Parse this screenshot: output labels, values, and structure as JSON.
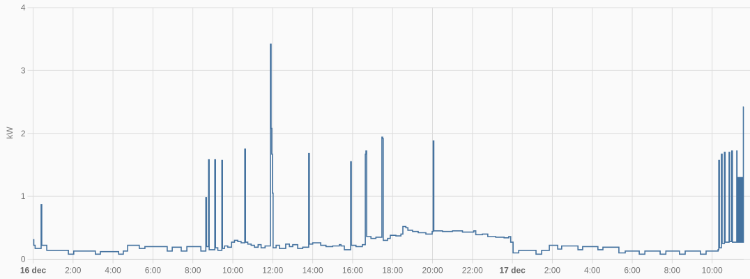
{
  "chart_data": {
    "type": "line",
    "step": true,
    "title": "",
    "xlabel": "",
    "ylabel": "kW",
    "ylim": [
      0,
      4
    ],
    "yticks": [
      "0",
      "1",
      "2",
      "3",
      "4"
    ],
    "xlim": [
      "16 dec 00:00",
      "17 dec 11:35"
    ],
    "xticks": [
      {
        "t": "16 dec 00:00",
        "label": "16 dec",
        "bold": true
      },
      {
        "t": "16 dec 02:00",
        "label": "2:00"
      },
      {
        "t": "16 dec 04:00",
        "label": "4:00"
      },
      {
        "t": "16 dec 06:00",
        "label": "6:00"
      },
      {
        "t": "16 dec 08:00",
        "label": "8:00"
      },
      {
        "t": "16 dec 10:00",
        "label": "10:00"
      },
      {
        "t": "16 dec 12:00",
        "label": "12:00"
      },
      {
        "t": "16 dec 14:00",
        "label": "14:00"
      },
      {
        "t": "16 dec 16:00",
        "label": "16:00"
      },
      {
        "t": "16 dec 18:00",
        "label": "18:00"
      },
      {
        "t": "16 dec 20:00",
        "label": "20:00"
      },
      {
        "t": "16 dec 22:00",
        "label": "22:00"
      },
      {
        "t": "17 dec 00:00",
        "label": "17 dec",
        "bold": true
      },
      {
        "t": "17 dec 02:00",
        "label": "2:00"
      },
      {
        "t": "17 dec 04:00",
        "label": "4:00"
      },
      {
        "t": "17 dec 06:00",
        "label": "6:00"
      },
      {
        "t": "17 dec 08:00",
        "label": "8:00"
      },
      {
        "t": "17 dec 10:00",
        "label": "10:00"
      }
    ],
    "grid": true,
    "legend": "none",
    "colors": {
      "line": "#44729f",
      "grid": "#dcdcdc",
      "text": "#757575"
    },
    "series": [
      {
        "points": [
          [
            "16 dec 00:00",
            0.31
          ],
          [
            "16 dec 00:02",
            0.22
          ],
          [
            "16 dec 00:06",
            0.17
          ],
          [
            "16 dec 00:24",
            0.87
          ],
          [
            "16 dec 00:26",
            0.22
          ],
          [
            "16 dec 00:41",
            0.14
          ],
          [
            "16 dec 01:46",
            0.08
          ],
          [
            "16 dec 02:02",
            0.13
          ],
          [
            "16 dec 03:07",
            0.08
          ],
          [
            "16 dec 03:22",
            0.12
          ],
          [
            "16 dec 04:17",
            0.08
          ],
          [
            "16 dec 04:31",
            0.13
          ],
          [
            "16 dec 04:44",
            0.22
          ],
          [
            "16 dec 05:19",
            0.17
          ],
          [
            "16 dec 05:36",
            0.2
          ],
          [
            "16 dec 06:43",
            0.13
          ],
          [
            "16 dec 06:58",
            0.19
          ],
          [
            "16 dec 07:25",
            0.13
          ],
          [
            "16 dec 07:42",
            0.2
          ],
          [
            "16 dec 08:24",
            0.13
          ],
          [
            "16 dec 08:39",
            0.98
          ],
          [
            "16 dec 08:41",
            0.2
          ],
          [
            "16 dec 08:47",
            1.58
          ],
          [
            "16 dec 08:49",
            0.15
          ],
          [
            "16 dec 09:06",
            1.58
          ],
          [
            "16 dec 09:08",
            0.18
          ],
          [
            "16 dec 09:15",
            0.14
          ],
          [
            "16 dec 09:27",
            1.57
          ],
          [
            "16 dec 09:29",
            0.17
          ],
          [
            "16 dec 09:35",
            0.21
          ],
          [
            "16 dec 09:45",
            0.19
          ],
          [
            "16 dec 09:56",
            0.27
          ],
          [
            "16 dec 10:05",
            0.3
          ],
          [
            "16 dec 10:15",
            0.28
          ],
          [
            "16 dec 10:25",
            0.26
          ],
          [
            "16 dec 10:36",
            1.75
          ],
          [
            "16 dec 10:38",
            0.27
          ],
          [
            "16 dec 10:45",
            0.24
          ],
          [
            "16 dec 10:55",
            0.22
          ],
          [
            "16 dec 11:05",
            0.19
          ],
          [
            "16 dec 11:16",
            0.23
          ],
          [
            "16 dec 11:25",
            0.18
          ],
          [
            "16 dec 11:37",
            0.21
          ],
          [
            "16 dec 11:53",
            3.42
          ],
          [
            "16 dec 11:55",
            2.08
          ],
          [
            "16 dec 11:57",
            1.67
          ],
          [
            "16 dec 11:59",
            1.05
          ],
          [
            "16 dec 12:01",
            0.18
          ],
          [
            "16 dec 12:10",
            0.22
          ],
          [
            "16 dec 12:20",
            0.17
          ],
          [
            "16 dec 12:39",
            0.24
          ],
          [
            "16 dec 12:50",
            0.2
          ],
          [
            "16 dec 13:00",
            0.23
          ],
          [
            "16 dec 13:15",
            0.17
          ],
          [
            "16 dec 13:30",
            0.19
          ],
          [
            "16 dec 13:48",
            1.68
          ],
          [
            "16 dec 13:50",
            0.24
          ],
          [
            "16 dec 14:00",
            0.26
          ],
          [
            "16 dec 14:24",
            0.22
          ],
          [
            "16 dec 14:40",
            0.2
          ],
          [
            "16 dec 15:00",
            0.21
          ],
          [
            "16 dec 15:20",
            0.23
          ],
          [
            "16 dec 15:25",
            0.21
          ],
          [
            "16 dec 15:35",
            0.15
          ],
          [
            "16 dec 15:54",
            1.55
          ],
          [
            "16 dec 15:56",
            0.22
          ],
          [
            "16 dec 16:10",
            0.2
          ],
          [
            "16 dec 16:29",
            0.23
          ],
          [
            "16 dec 16:38",
            1.67
          ],
          [
            "16 dec 16:40",
            1.72
          ],
          [
            "16 dec 16:42",
            0.36
          ],
          [
            "16 dec 16:55",
            0.33
          ],
          [
            "16 dec 17:10",
            0.35
          ],
          [
            "16 dec 17:28",
            1.94
          ],
          [
            "16 dec 17:30",
            1.92
          ],
          [
            "16 dec 17:32",
            0.3
          ],
          [
            "16 dec 17:45",
            0.33
          ],
          [
            "16 dec 17:53",
            0.38
          ],
          [
            "16 dec 18:10",
            0.37
          ],
          [
            "16 dec 18:25",
            0.4
          ],
          [
            "16 dec 18:31",
            0.52
          ],
          [
            "16 dec 18:40",
            0.5
          ],
          [
            "16 dec 18:46",
            0.46
          ],
          [
            "16 dec 19:00",
            0.44
          ],
          [
            "16 dec 19:17",
            0.42
          ],
          [
            "16 dec 19:40",
            0.4
          ],
          [
            "16 dec 19:59",
            0.44
          ],
          [
            "16 dec 20:02",
            1.88
          ],
          [
            "16 dec 20:04",
            0.45
          ],
          [
            "16 dec 20:30",
            0.44
          ],
          [
            "16 dec 21:00",
            0.45
          ],
          [
            "16 dec 21:30",
            0.43
          ],
          [
            "16 dec 22:04",
            0.45
          ],
          [
            "16 dec 22:10",
            0.39
          ],
          [
            "16 dec 22:30",
            0.4
          ],
          [
            "16 dec 22:46",
            0.36
          ],
          [
            "16 dec 23:10",
            0.35
          ],
          [
            "16 dec 23:35",
            0.34
          ],
          [
            "16 dec 23:49",
            0.36
          ],
          [
            "16 dec 23:55",
            0.27
          ],
          [
            "17 dec 00:02",
            0.1
          ],
          [
            "17 dec 00:19",
            0.14
          ],
          [
            "17 dec 01:11",
            0.08
          ],
          [
            "17 dec 01:28",
            0.14
          ],
          [
            "17 dec 01:51",
            0.22
          ],
          [
            "17 dec 02:16",
            0.16
          ],
          [
            "17 dec 02:28",
            0.21
          ],
          [
            "17 dec 03:17",
            0.15
          ],
          [
            "17 dec 03:31",
            0.2
          ],
          [
            "17 dec 04:17",
            0.15
          ],
          [
            "17 dec 04:32",
            0.19
          ],
          [
            "17 dec 05:20",
            0.1
          ],
          [
            "17 dec 05:39",
            0.13
          ],
          [
            "17 dec 06:21",
            0.08
          ],
          [
            "17 dec 06:38",
            0.13
          ],
          [
            "17 dec 07:24",
            0.08
          ],
          [
            "17 dec 07:41",
            0.13
          ],
          [
            "17 dec 08:22",
            0.08
          ],
          [
            "17 dec 08:39",
            0.13
          ],
          [
            "17 dec 09:25",
            0.08
          ],
          [
            "17 dec 09:42",
            0.13
          ],
          [
            "17 dec 10:18",
            0.15
          ],
          [
            "17 dec 10:20",
            1.57
          ],
          [
            "17 dec 10:22",
            0.18
          ],
          [
            "17 dec 10:28",
            1.67
          ],
          [
            "17 dec 10:30",
            0.25
          ],
          [
            "17 dec 10:37",
            1.7
          ],
          [
            "17 dec 10:39",
            0.27
          ],
          [
            "17 dec 10:51",
            1.7
          ],
          [
            "17 dec 10:53",
            0.28
          ],
          [
            "17 dec 10:59",
            1.72
          ],
          [
            "17 dec 11:01",
            0.27
          ],
          [
            "17 dec 11:14",
            1.72
          ],
          [
            "17 dec 11:15",
            0.27
          ],
          [
            "17 dec 11:16",
            1.3
          ],
          [
            "17 dec 11:17",
            0.27
          ],
          [
            "17 dec 11:18",
            1.28
          ],
          [
            "17 dec 11:19",
            0.27
          ],
          [
            "17 dec 11:20",
            1.3
          ],
          [
            "17 dec 11:21",
            0.27
          ],
          [
            "17 dec 11:22",
            1.3
          ],
          [
            "17 dec 11:23",
            0.27
          ],
          [
            "17 dec 11:24",
            1.28
          ],
          [
            "17 dec 11:25",
            0.27
          ],
          [
            "17 dec 11:26",
            1.3
          ],
          [
            "17 dec 11:27",
            0.27
          ],
          [
            "17 dec 11:28",
            1.3
          ],
          [
            "17 dec 11:29",
            0.27
          ],
          [
            "17 dec 11:30",
            1.28
          ],
          [
            "17 dec 11:31",
            0.27
          ],
          [
            "17 dec 11:32",
            1.3
          ],
          [
            "17 dec 11:33",
            0.27
          ],
          [
            "17 dec 11:34",
            2.42
          ]
        ]
      }
    ]
  }
}
